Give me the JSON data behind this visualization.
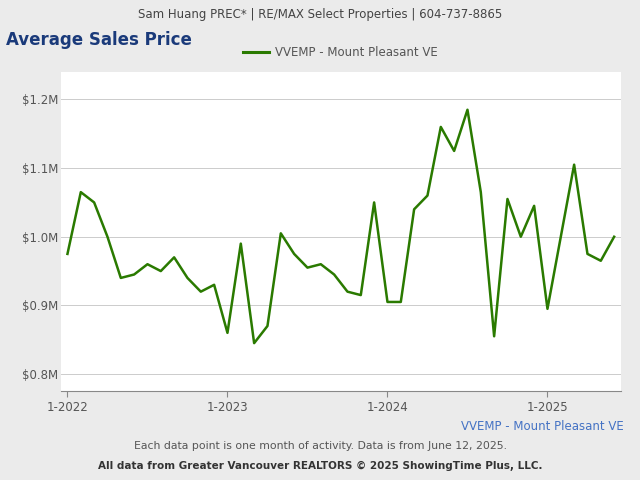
{
  "header_text": "Sam Huang PREC* | RE/MAX Select Properties | 604-737-8865",
  "title": "Average Sales Price",
  "legend_label": "VVEMP - Mount Pleasant VE",
  "line_color": "#2a7a00",
  "line_width": 1.8,
  "background_color": "#ebebeb",
  "plot_background_color": "#ffffff",
  "footer_label": "VVEMP - Mount Pleasant VE",
  "footer_note": "Each data point is one month of activity. Data is from June 12, 2025.",
  "footer_source": "All data from Greater Vancouver REALTORS © 2025 ShowingTime Plus, LLC.",
  "ytick_values": [
    800000,
    900000,
    1000000,
    1100000,
    1200000
  ],
  "ylim": [
    775000,
    1240000
  ],
  "xtick_labels": [
    "1-2022",
    "1-2023",
    "1-2024",
    "1-2025"
  ],
  "n_months": 42,
  "values": [
    975000,
    1065000,
    1050000,
    1000000,
    940000,
    945000,
    960000,
    950000,
    970000,
    940000,
    920000,
    930000,
    860000,
    990000,
    845000,
    870000,
    1005000,
    975000,
    955000,
    960000,
    945000,
    920000,
    915000,
    1050000,
    905000,
    905000,
    1040000,
    1060000,
    1160000,
    1125000,
    1185000,
    1065000,
    855000,
    1055000,
    1000000,
    1045000,
    895000,
    1000000,
    1105000,
    975000,
    965000,
    1000000
  ]
}
